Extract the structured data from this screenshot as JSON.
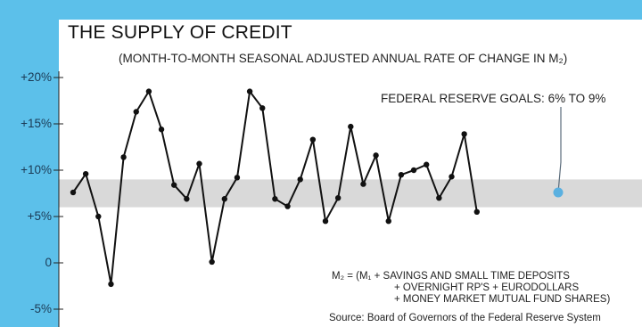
{
  "chart_data": {
    "type": "line",
    "title": "THE SUPPLY OF CREDIT",
    "subtitle": "(MONTH-TO-MONTH SEASONAL ADJUSTED ANNUAL RATE OF CHANGE IN M₂)",
    "goal_annotation": "FEDERAL RESERVE GOALS: 6% TO 9%",
    "goal_band": [
      6,
      9
    ],
    "goal_marker": 7.6,
    "ylim": [
      -6.5,
      21
    ],
    "yticks": [
      {
        "value": 20,
        "label": "+20%"
      },
      {
        "value": 15,
        "label": "+15%"
      },
      {
        "value": 10,
        "label": "+10%"
      },
      {
        "value": 5,
        "label": "+5%"
      },
      {
        "value": 0,
        "label": "0"
      },
      {
        "value": -5,
        "label": "-5%"
      }
    ],
    "values": [
      7.6,
      9.6,
      5.0,
      -2.3,
      11.4,
      16.3,
      18.5,
      14.4,
      8.4,
      6.9,
      10.7,
      0.1,
      6.9,
      9.2,
      18.5,
      16.7,
      6.9,
      6.1,
      9.0,
      13.3,
      4.5,
      7.0,
      14.7,
      8.5,
      11.6,
      4.5,
      9.5,
      10.0,
      10.6,
      7.0,
      9.3,
      13.9,
      5.5
    ],
    "colors": {
      "background_panel": "#5cc0ea",
      "plot_area": "#ffffff",
      "goal_band": "#d9d9d9",
      "line": "#111111",
      "goal_marker": "#5ab0e0"
    }
  },
  "formula": {
    "line1": "M₂ = (M₁ + SAVINGS AND SMALL TIME DEPOSITS",
    "line2": "+ OVERNIGHT RP'S + EURODOLLARS",
    "line3": "+ MONEY MARKET MUTUAL FUND SHARES)"
  },
  "source": "Source: Board of Governors of the Federal Reserve System"
}
